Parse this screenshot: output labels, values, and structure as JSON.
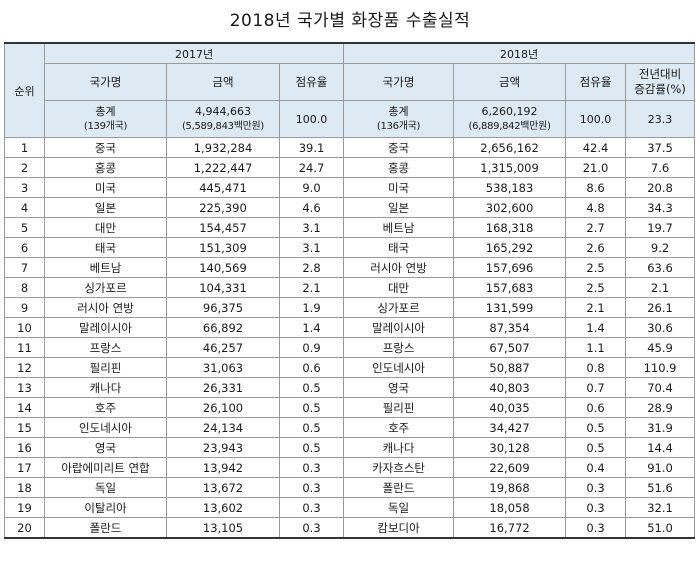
{
  "title": "2018년 국가별 화장품 수출실적",
  "header": {
    "rank": "순위",
    "year_2017": "2017년",
    "year_2018": "2018년",
    "country": "국가명",
    "amount": "금액",
    "share": "점유율",
    "growth_line1": "전년대비",
    "growth_line2": "증감률(%)"
  },
  "totals": {
    "y2017": {
      "label": "총계",
      "sub": "(139개국)",
      "amount": "4,944,663",
      "amount_sub": "(5,589,843백만원)",
      "share": "100.0"
    },
    "y2018": {
      "label": "총계",
      "sub": "(136개국)",
      "amount": "6,260,192",
      "amount_sub": "(6,889,842백만원)",
      "share": "100.0",
      "growth": "23.3"
    }
  },
  "rows": [
    {
      "rank": "1",
      "c17": "중국",
      "a17": "1,932,284",
      "s17": "39.1",
      "c18": "중국",
      "a18": "2,656,162",
      "s18": "42.4",
      "g": "37.5"
    },
    {
      "rank": "2",
      "c17": "홍콩",
      "a17": "1,222,447",
      "s17": "24.7",
      "c18": "홍콩",
      "a18": "1,315,009",
      "s18": "21.0",
      "g": "7.6"
    },
    {
      "rank": "3",
      "c17": "미국",
      "a17": "445,471",
      "s17": "9.0",
      "c18": "미국",
      "a18": "538,183",
      "s18": "8.6",
      "g": "20.8"
    },
    {
      "rank": "4",
      "c17": "일본",
      "a17": "225,390",
      "s17": "4.6",
      "c18": "일본",
      "a18": "302,600",
      "s18": "4.8",
      "g": "34.3"
    },
    {
      "rank": "5",
      "c17": "대만",
      "a17": "154,457",
      "s17": "3.1",
      "c18": "베트남",
      "a18": "168,318",
      "s18": "2.7",
      "g": "19.7"
    },
    {
      "rank": "6",
      "c17": "태국",
      "a17": "151,309",
      "s17": "3.1",
      "c18": "태국",
      "a18": "165,292",
      "s18": "2.6",
      "g": "9.2"
    },
    {
      "rank": "7",
      "c17": "베트남",
      "a17": "140,569",
      "s17": "2.8",
      "c18": "러시아 연방",
      "a18": "157,696",
      "s18": "2.5",
      "g": "63.6"
    },
    {
      "rank": "8",
      "c17": "싱가포르",
      "a17": "104,331",
      "s17": "2.1",
      "c18": "대만",
      "a18": "157,683",
      "s18": "2.5",
      "g": "2.1"
    },
    {
      "rank": "9",
      "c17": "러시아 연방",
      "a17": "96,375",
      "s17": "1.9",
      "c18": "싱가포르",
      "a18": "131,599",
      "s18": "2.1",
      "g": "26.1"
    },
    {
      "rank": "10",
      "c17": "말레이시아",
      "a17": "66,892",
      "s17": "1.4",
      "c18": "말레이시아",
      "a18": "87,354",
      "s18": "1.4",
      "g": "30.6"
    },
    {
      "rank": "11",
      "c17": "프랑스",
      "a17": "46,257",
      "s17": "0.9",
      "c18": "프랑스",
      "a18": "67,507",
      "s18": "1.1",
      "g": "45.9"
    },
    {
      "rank": "12",
      "c17": "필리핀",
      "a17": "31,063",
      "s17": "0.6",
      "c18": "인도네시아",
      "a18": "50,887",
      "s18": "0.8",
      "g": "110.9"
    },
    {
      "rank": "13",
      "c17": "캐나다",
      "a17": "26,331",
      "s17": "0.5",
      "c18": "영국",
      "a18": "40,803",
      "s18": "0.7",
      "g": "70.4"
    },
    {
      "rank": "14",
      "c17": "호주",
      "a17": "26,100",
      "s17": "0.5",
      "c18": "필리핀",
      "a18": "40,035",
      "s18": "0.6",
      "g": "28.9"
    },
    {
      "rank": "15",
      "c17": "인도네시아",
      "a17": "24,134",
      "s17": "0.5",
      "c18": "호주",
      "a18": "34,427",
      "s18": "0.5",
      "g": "31.9"
    },
    {
      "rank": "16",
      "c17": "영국",
      "a17": "23,943",
      "s17": "0.5",
      "c18": "캐나다",
      "a18": "30,128",
      "s18": "0.5",
      "g": "14.4"
    },
    {
      "rank": "17",
      "c17": "아랍에미리트 연합",
      "a17": "13,942",
      "s17": "0.3",
      "c18": "카자흐스탄",
      "a18": "22,609",
      "s18": "0.4",
      "g": "91.0"
    },
    {
      "rank": "18",
      "c17": "독일",
      "a17": "13,672",
      "s17": "0.3",
      "c18": "폴란드",
      "a18": "19,868",
      "s18": "0.3",
      "g": "51.6"
    },
    {
      "rank": "19",
      "c17": "이탈리아",
      "a17": "13,602",
      "s17": "0.3",
      "c18": "독일",
      "a18": "18,058",
      "s18": "0.3",
      "g": "32.1"
    },
    {
      "rank": "20",
      "c17": "폴란드",
      "a17": "13,105",
      "s17": "0.3",
      "c18": "캄보디아",
      "a18": "16,772",
      "s18": "0.3",
      "g": "51.0"
    }
  ]
}
